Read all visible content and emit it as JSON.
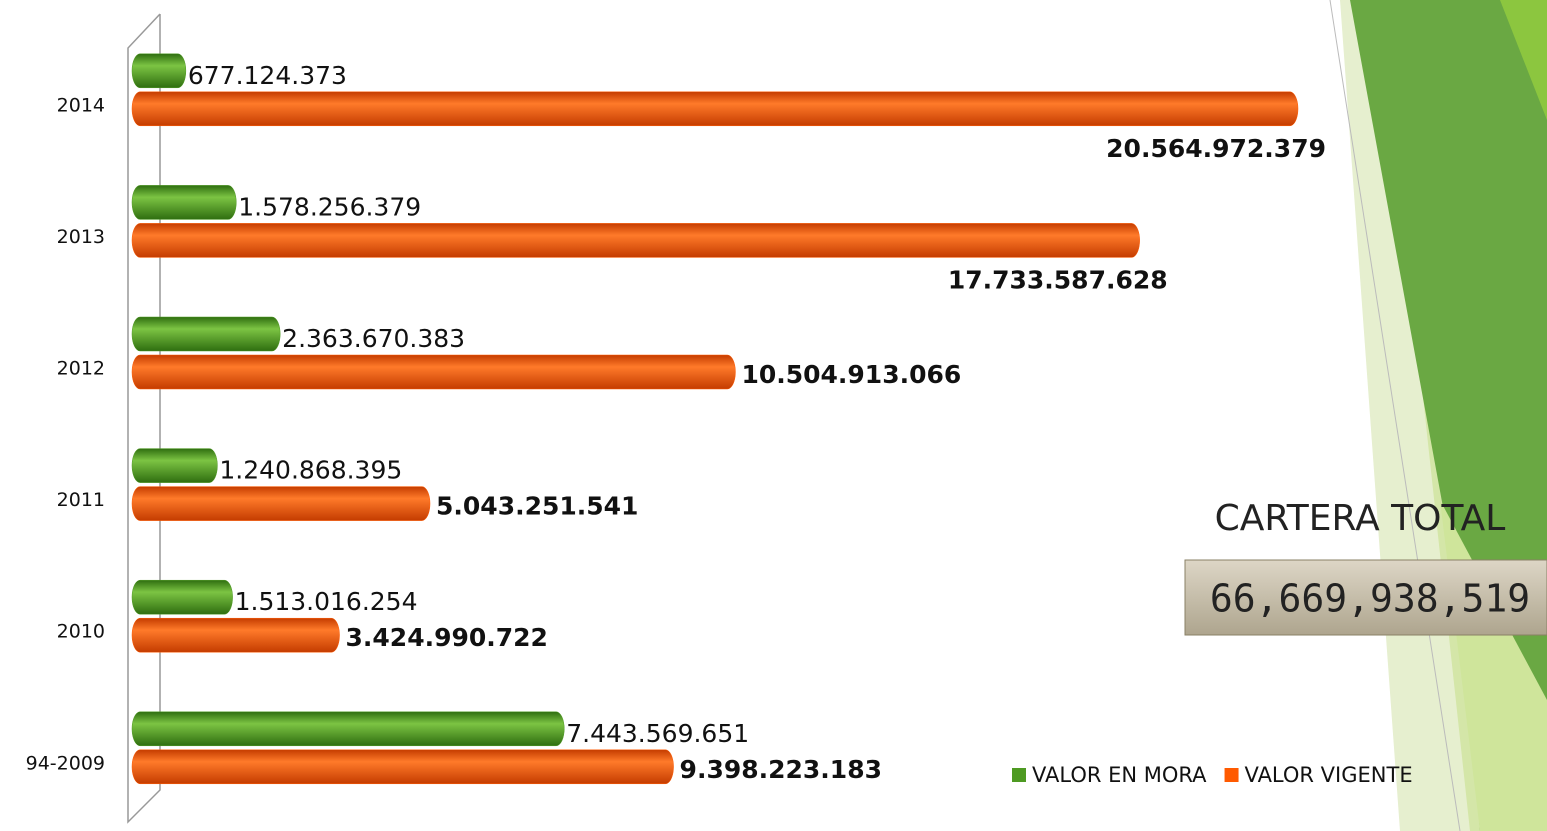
{
  "chart_data": {
    "type": "bar",
    "orientation": "horizontal",
    "categories": [
      "2014",
      "2013",
      "2012",
      "2011",
      "2010",
      "94-2009"
    ],
    "series": [
      {
        "name": "VALOR EN MORA",
        "color": "#4e9a22",
        "values": [
          677124373,
          1578256379,
          2363670383,
          1240868395,
          1513016254,
          7443569651
        ],
        "value_labels": [
          "677.124.373",
          "1.578.256.379",
          "2.363.670.383",
          "1.240.868.395",
          "1.513.016.254",
          "7.443.569.651"
        ]
      },
      {
        "name": "VALOR VIGENTE",
        "color": "#ff5a00",
        "values": [
          20564972379,
          17733587628,
          10504913066,
          5043251541,
          3424990722,
          9398223183
        ],
        "value_labels": [
          "20.564.972.379",
          "17.733.587.628",
          "10.504.913.066",
          "5.043.251.541",
          "3.424.990.722",
          "9.398.223.183"
        ]
      }
    ],
    "annotations": [
      "CARTERA TOTAL",
      "66,669,938,519"
    ],
    "legend": "bottom-right"
  }
}
